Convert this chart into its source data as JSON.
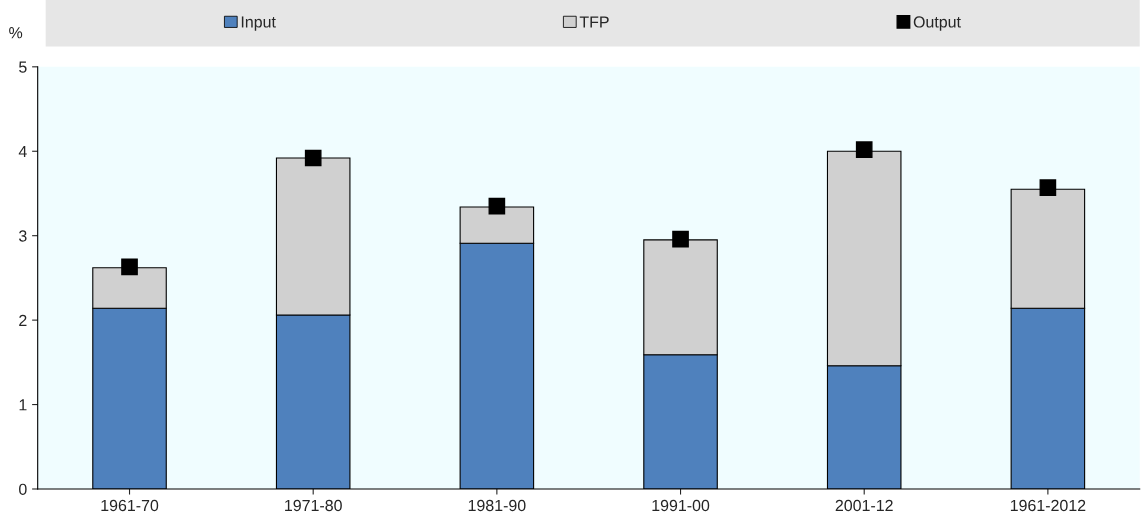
{
  "chart_data": {
    "type": "bar",
    "stacked": true,
    "ylabel": "%",
    "categories": [
      "1961-70",
      "1971-80",
      "1981-90",
      "1991-00",
      "2001-12",
      "1961-2012"
    ],
    "series": [
      {
        "name": "Input",
        "color": "#4f81bd",
        "values": [
          2.14,
          2.06,
          2.91,
          1.59,
          1.46,
          2.14
        ]
      },
      {
        "name": "TFP",
        "color": "#d0d0d0",
        "values": [
          0.48,
          1.86,
          0.43,
          1.36,
          2.54,
          1.41
        ]
      },
      {
        "name": "Output",
        "type": "scatter",
        "marker": "square",
        "color": "#000000",
        "values": [
          2.63,
          3.92,
          3.35,
          2.96,
          4.02,
          3.57
        ]
      }
    ],
    "ylim": [
      0,
      5
    ],
    "yticks": [
      0,
      1,
      2,
      3,
      4,
      5
    ],
    "grid": false,
    "legend": "top"
  }
}
